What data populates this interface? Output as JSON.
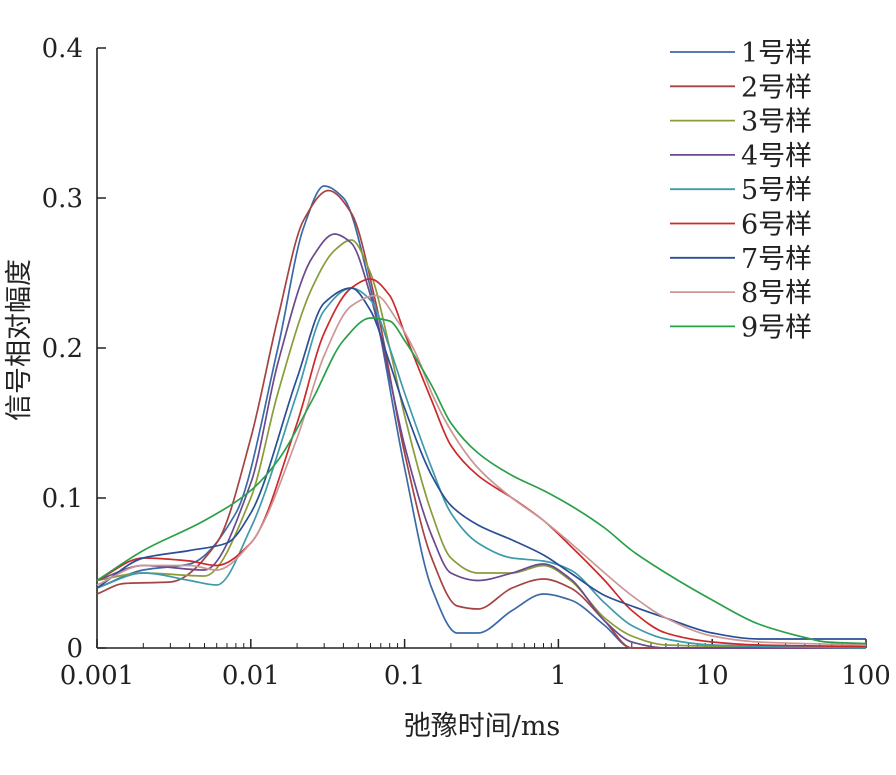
{
  "chart_data": {
    "type": "line",
    "xscale": "log",
    "xlabel": "弛豫时间/ms",
    "ylabel": "信号相对幅度",
    "xlim": [
      0.001,
      100
    ],
    "ylim": [
      0,
      0.4
    ],
    "xticks": [
      "0.001",
      "0.01",
      "0.1",
      "1",
      "10",
      "100"
    ],
    "yticks": [
      "0",
      "0.1",
      "0.2",
      "0.3",
      "0.4"
    ],
    "legend_position": "top-right",
    "grid": false,
    "series": [
      {
        "name": "1号样",
        "color": "#3b6aa8",
        "x": [
          0.001,
          0.002,
          0.004,
          0.008,
          0.015,
          0.022,
          0.03,
          0.04,
          0.06,
          0.1,
          0.15,
          0.22,
          0.3,
          0.5,
          0.8,
          1.2,
          2,
          3,
          10,
          100
        ],
        "y": [
          0.04,
          0.052,
          0.056,
          0.09,
          0.2,
          0.28,
          0.308,
          0.3,
          0.24,
          0.12,
          0.04,
          0.01,
          0.01,
          0.025,
          0.036,
          0.032,
          0.015,
          0.0,
          0.0,
          0.0
        ]
      },
      {
        "name": "2号样",
        "color": "#a54343",
        "x": [
          0.001,
          0.0015,
          0.003,
          0.006,
          0.01,
          0.015,
          0.022,
          0.032,
          0.045,
          0.065,
          0.1,
          0.15,
          0.22,
          0.3,
          0.5,
          0.8,
          1.2,
          2,
          3,
          10,
          100
        ],
        "y": [
          0.036,
          0.043,
          0.044,
          0.07,
          0.14,
          0.22,
          0.285,
          0.305,
          0.29,
          0.23,
          0.13,
          0.06,
          0.028,
          0.026,
          0.04,
          0.046,
          0.04,
          0.018,
          0.0,
          0.0,
          0.0
        ]
      },
      {
        "name": "3号样",
        "color": "#8a9b3a",
        "x": [
          0.001,
          0.002,
          0.005,
          0.01,
          0.015,
          0.025,
          0.035,
          0.045,
          0.06,
          0.08,
          0.1,
          0.15,
          0.2,
          0.3,
          0.5,
          0.8,
          1.2,
          2,
          3,
          5,
          100
        ],
        "y": [
          0.045,
          0.05,
          0.048,
          0.1,
          0.17,
          0.24,
          0.265,
          0.272,
          0.25,
          0.2,
          0.155,
          0.09,
          0.06,
          0.05,
          0.05,
          0.055,
          0.045,
          0.02,
          0.008,
          0.002,
          0.0
        ]
      },
      {
        "name": "4号样",
        "color": "#6b4a8e",
        "x": [
          0.001,
          0.002,
          0.005,
          0.01,
          0.015,
          0.025,
          0.035,
          0.045,
          0.06,
          0.08,
          0.1,
          0.15,
          0.2,
          0.3,
          0.5,
          0.8,
          1.2,
          2,
          3,
          5,
          100
        ],
        "y": [
          0.045,
          0.055,
          0.052,
          0.11,
          0.19,
          0.26,
          0.276,
          0.27,
          0.235,
          0.18,
          0.135,
          0.075,
          0.05,
          0.045,
          0.05,
          0.056,
          0.046,
          0.018,
          0.004,
          0.0,
          0.0
        ]
      },
      {
        "name": "5号样",
        "color": "#3f9aaa",
        "x": [
          0.001,
          0.002,
          0.004,
          0.006,
          0.01,
          0.02,
          0.03,
          0.045,
          0.06,
          0.08,
          0.1,
          0.15,
          0.2,
          0.3,
          0.5,
          0.8,
          1.2,
          2,
          3,
          5,
          10,
          100
        ],
        "y": [
          0.04,
          0.05,
          0.045,
          0.042,
          0.08,
          0.17,
          0.225,
          0.24,
          0.232,
          0.2,
          0.17,
          0.12,
          0.09,
          0.07,
          0.06,
          0.058,
          0.052,
          0.03,
          0.015,
          0.006,
          0.002,
          0.0
        ]
      },
      {
        "name": "6号样",
        "color": "#cc2a2a",
        "x": [
          0.001,
          0.002,
          0.004,
          0.006,
          0.01,
          0.02,
          0.03,
          0.045,
          0.06,
          0.08,
          0.1,
          0.15,
          0.2,
          0.3,
          0.5,
          0.8,
          1.2,
          2,
          3,
          5,
          10,
          20,
          100
        ],
        "y": [
          0.045,
          0.06,
          0.058,
          0.055,
          0.07,
          0.15,
          0.21,
          0.24,
          0.246,
          0.235,
          0.21,
          0.165,
          0.135,
          0.115,
          0.1,
          0.085,
          0.068,
          0.045,
          0.025,
          0.01,
          0.004,
          0.002,
          0.001
        ]
      },
      {
        "name": "7号样",
        "color": "#2a4f96",
        "x": [
          0.001,
          0.002,
          0.004,
          0.007,
          0.01,
          0.02,
          0.03,
          0.045,
          0.06,
          0.08,
          0.1,
          0.15,
          0.2,
          0.3,
          0.5,
          0.8,
          1.2,
          2,
          3,
          5,
          10,
          20,
          100
        ],
        "y": [
          0.04,
          0.06,
          0.065,
          0.07,
          0.09,
          0.18,
          0.23,
          0.24,
          0.225,
          0.19,
          0.16,
          0.115,
          0.095,
          0.082,
          0.072,
          0.062,
          0.05,
          0.035,
          0.028,
          0.02,
          0.01,
          0.006,
          0.006
        ]
      },
      {
        "name": "8号样",
        "color": "#cc9696",
        "x": [
          0.001,
          0.002,
          0.004,
          0.006,
          0.01,
          0.02,
          0.03,
          0.045,
          0.065,
          0.09,
          0.12,
          0.15,
          0.2,
          0.3,
          0.5,
          0.8,
          1.2,
          2,
          3,
          5,
          10,
          20,
          100
        ],
        "y": [
          0.042,
          0.055,
          0.055,
          0.052,
          0.07,
          0.14,
          0.195,
          0.228,
          0.235,
          0.218,
          0.195,
          0.17,
          0.145,
          0.12,
          0.1,
          0.085,
          0.07,
          0.05,
          0.035,
          0.02,
          0.008,
          0.004,
          0.002
        ]
      },
      {
        "name": "9号样",
        "color": "#2aa048",
        "x": [
          0.001,
          0.002,
          0.005,
          0.01,
          0.015,
          0.025,
          0.04,
          0.06,
          0.08,
          0.1,
          0.15,
          0.2,
          0.3,
          0.5,
          0.8,
          1.2,
          2,
          3,
          5,
          10,
          20,
          40,
          55,
          100
        ],
        "y": [
          0.045,
          0.065,
          0.085,
          0.105,
          0.125,
          0.165,
          0.205,
          0.22,
          0.218,
          0.205,
          0.175,
          0.15,
          0.13,
          0.115,
          0.105,
          0.095,
          0.08,
          0.065,
          0.05,
          0.032,
          0.016,
          0.007,
          0.004,
          0.003
        ]
      }
    ]
  }
}
